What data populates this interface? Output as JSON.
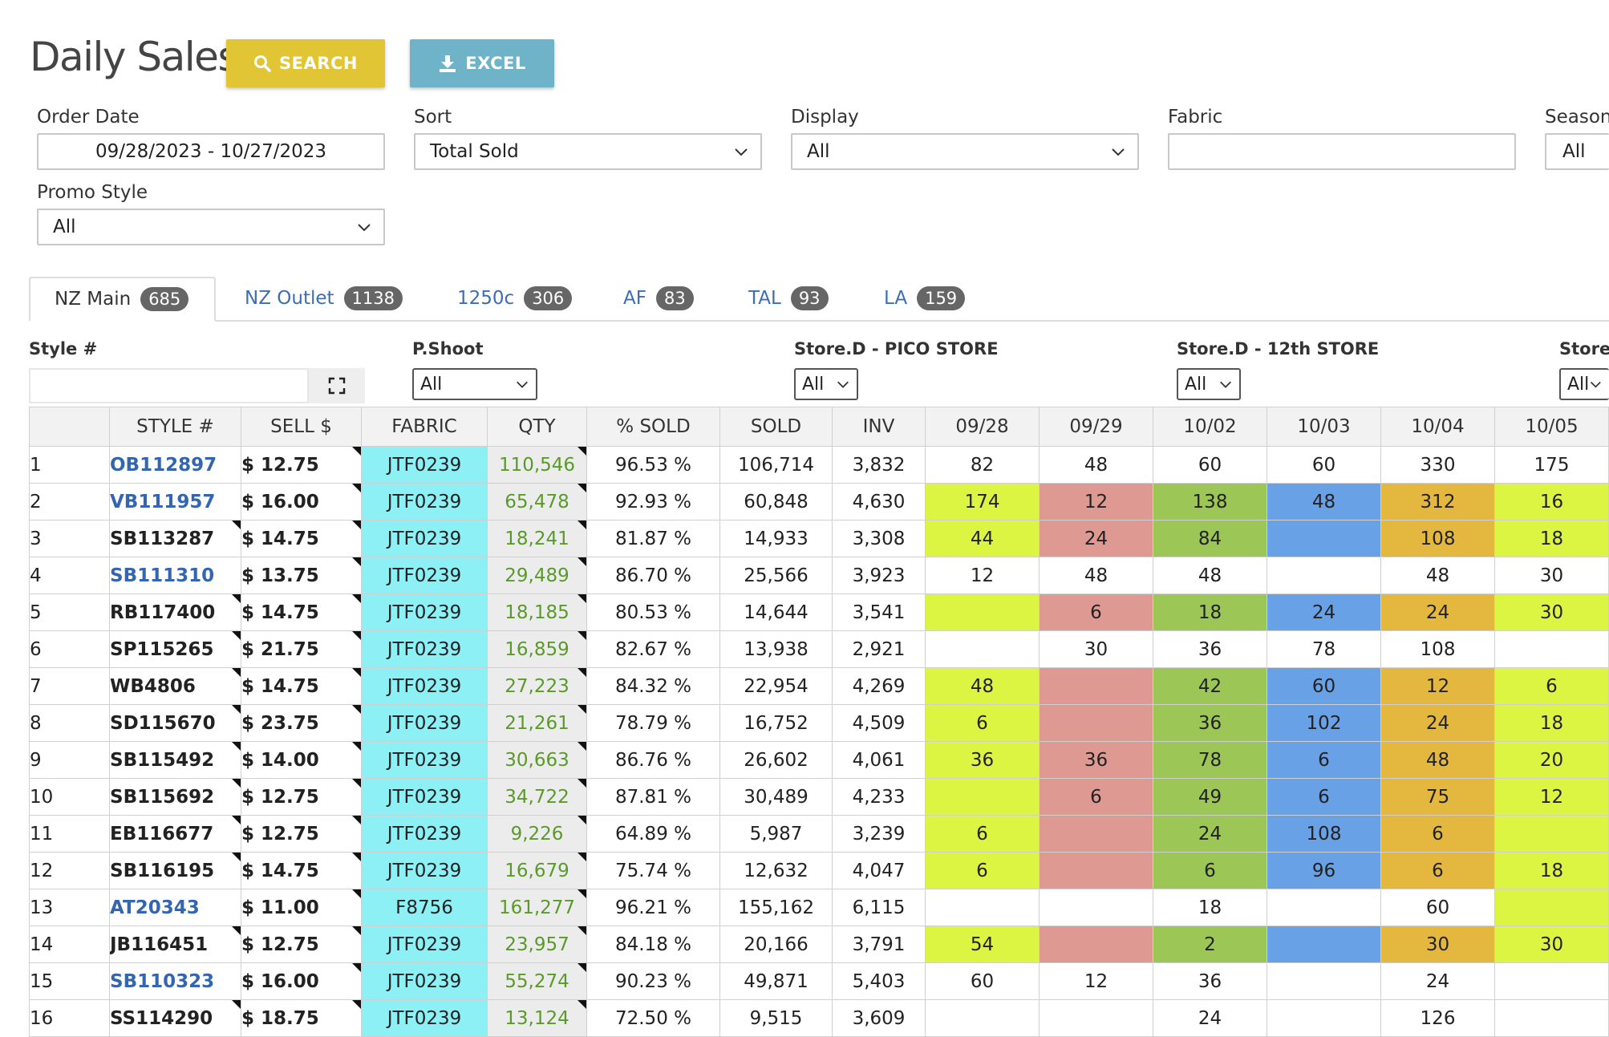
{
  "page": {
    "title": "Daily Sales"
  },
  "toolbar": {
    "search_label": "SEARCH",
    "excel_label": "EXCEL"
  },
  "filters": {
    "order_date": {
      "label": "Order Date",
      "value": "09/28/2023 - 10/27/2023"
    },
    "sort": {
      "label": "Sort",
      "value": "Total Sold"
    },
    "display": {
      "label": "Display",
      "value": "All"
    },
    "fabric": {
      "label": "Fabric",
      "value": ""
    },
    "season": {
      "label": "Season",
      "value": "All"
    },
    "promo_style": {
      "label": "Promo Style",
      "value": "All"
    }
  },
  "tabs": [
    {
      "label": "NZ Main",
      "count": "685",
      "active": true
    },
    {
      "label": "NZ Outlet",
      "count": "1138",
      "active": false
    },
    {
      "label": "1250c",
      "count": "306",
      "active": false
    },
    {
      "label": "AF",
      "count": "83",
      "active": false
    },
    {
      "label": "TAL",
      "count": "93",
      "active": false
    },
    {
      "label": "LA",
      "count": "159",
      "active": false
    }
  ],
  "column_filters": {
    "style_label": "Style #",
    "pshoot": {
      "label": "P.Shoot",
      "value": "All"
    },
    "pico": {
      "label": "Store.D - PICO STORE",
      "value": "All"
    },
    "twelfth": {
      "label": "Store.D - 12th STORE",
      "value": "All"
    },
    "store": {
      "label": "Store.",
      "value": "All"
    }
  },
  "table": {
    "headers": [
      "",
      "STYLE #",
      "SELL $",
      "FABRIC",
      "QTY",
      "% SOLD",
      "SOLD",
      "INV",
      "09/28",
      "09/29",
      "10/02",
      "10/03",
      "10/04",
      "10/05"
    ],
    "day_colors": [
      "yellow",
      "red",
      "green",
      "blue",
      "orange",
      "yellow"
    ],
    "rows": [
      {
        "n": "1",
        "style": "OB112897",
        "link": true,
        "sell": "$ 12.75",
        "fabric": "JTF0239",
        "qty": "110,546",
        "pct": "96.53 %",
        "sold": "106,714",
        "inv": "3,832",
        "days": [
          "82",
          "48",
          "60",
          "60",
          "330",
          "175"
        ],
        "colored": false
      },
      {
        "n": "2",
        "style": "VB111957",
        "link": true,
        "sell": "$ 16.00",
        "fabric": "JTF0239",
        "qty": "65,478",
        "pct": "92.93 %",
        "sold": "60,848",
        "inv": "4,630",
        "days": [
          "174",
          "12",
          "138",
          "48",
          "312",
          "16"
        ],
        "colored": true
      },
      {
        "n": "3",
        "style": "SB113287",
        "link": false,
        "sell": "$ 14.75",
        "fabric": "JTF0239",
        "qty": "18,241",
        "pct": "81.87 %",
        "sold": "14,933",
        "inv": "3,308",
        "days": [
          "44",
          "24",
          "84",
          "",
          "108",
          "18"
        ],
        "colored": true
      },
      {
        "n": "4",
        "style": "SB111310",
        "link": true,
        "sell": "$ 13.75",
        "fabric": "JTF0239",
        "qty": "29,489",
        "pct": "86.70 %",
        "sold": "25,566",
        "inv": "3,923",
        "days": [
          "12",
          "48",
          "48",
          "",
          "48",
          "30"
        ],
        "colored": false
      },
      {
        "n": "5",
        "style": "RB117400",
        "link": false,
        "sell": "$ 14.75",
        "fabric": "JTF0239",
        "qty": "18,185",
        "pct": "80.53 %",
        "sold": "14,644",
        "inv": "3,541",
        "days": [
          "",
          "6",
          "18",
          "24",
          "24",
          "30"
        ],
        "colored": true
      },
      {
        "n": "6",
        "style": "SP115265",
        "link": false,
        "sell": "$ 21.75",
        "fabric": "JTF0239",
        "qty": "16,859",
        "pct": "82.67 %",
        "sold": "13,938",
        "inv": "2,921",
        "days": [
          "",
          "30",
          "36",
          "78",
          "108",
          ""
        ],
        "colored": false
      },
      {
        "n": "7",
        "style": "WB4806",
        "link": false,
        "sell": "$ 14.75",
        "fabric": "JTF0239",
        "qty": "27,223",
        "pct": "84.32 %",
        "sold": "22,954",
        "inv": "4,269",
        "days": [
          "48",
          "",
          "42",
          "60",
          "12",
          "6"
        ],
        "colored": true
      },
      {
        "n": "8",
        "style": "SD115670",
        "link": false,
        "sell": "$ 23.75",
        "fabric": "JTF0239",
        "qty": "21,261",
        "pct": "78.79 %",
        "sold": "16,752",
        "inv": "4,509",
        "days": [
          "6",
          "",
          "36",
          "102",
          "24",
          "18"
        ],
        "colored": true
      },
      {
        "n": "9",
        "style": "SB115492",
        "link": false,
        "sell": "$ 14.00",
        "fabric": "JTF0239",
        "qty": "30,663",
        "pct": "86.76 %",
        "sold": "26,602",
        "inv": "4,061",
        "days": [
          "36",
          "36",
          "78",
          "6",
          "48",
          "20"
        ],
        "colored": true
      },
      {
        "n": "10",
        "style": "SB115692",
        "link": false,
        "sell": "$ 12.75",
        "fabric": "JTF0239",
        "qty": "34,722",
        "pct": "87.81 %",
        "sold": "30,489",
        "inv": "4,233",
        "days": [
          "",
          "6",
          "49",
          "6",
          "75",
          "12"
        ],
        "colored": true
      },
      {
        "n": "11",
        "style": "EB116677",
        "link": false,
        "sell": "$ 12.75",
        "fabric": "JTF0239",
        "qty": "9,226",
        "pct": "64.89 %",
        "sold": "5,987",
        "inv": "3,239",
        "days": [
          "6",
          "",
          "24",
          "108",
          "6",
          ""
        ],
        "colored": true
      },
      {
        "n": "12",
        "style": "SB116195",
        "link": false,
        "sell": "$ 14.75",
        "fabric": "JTF0239",
        "qty": "16,679",
        "pct": "75.74 %",
        "sold": "12,632",
        "inv": "4,047",
        "days": [
          "6",
          "",
          "6",
          "96",
          "6",
          "18"
        ],
        "colored": true
      },
      {
        "n": "13",
        "style": "AT20343",
        "link": true,
        "sell": "$ 11.00",
        "fabric": "F8756",
        "qty": "161,277",
        "pct": "96.21 %",
        "sold": "155,162",
        "inv": "6,115",
        "days": [
          "",
          "",
          "18",
          "",
          "60",
          ""
        ],
        "colored": false,
        "last_yellow": true
      },
      {
        "n": "14",
        "style": "JB116451",
        "link": false,
        "sell": "$ 12.75",
        "fabric": "JTF0239",
        "qty": "23,957",
        "pct": "84.18 %",
        "sold": "20,166",
        "inv": "3,791",
        "days": [
          "54",
          "",
          "2",
          "",
          "30",
          "30"
        ],
        "colored": true
      },
      {
        "n": "15",
        "style": "SB110323",
        "link": true,
        "sell": "$ 16.00",
        "fabric": "JTF0239",
        "qty": "55,274",
        "pct": "90.23 %",
        "sold": "49,871",
        "inv": "5,403",
        "days": [
          "60",
          "12",
          "36",
          "",
          "24",
          ""
        ],
        "colored": false
      },
      {
        "n": "16",
        "style": "SS114290",
        "link": false,
        "sell": "$ 18.75",
        "fabric": "JTF0239",
        "qty": "13,124",
        "pct": "72.50 %",
        "sold": "9,515",
        "inv": "3,609",
        "days": [
          "",
          "",
          "24",
          "",
          "126",
          ""
        ],
        "colored": false
      }
    ]
  }
}
